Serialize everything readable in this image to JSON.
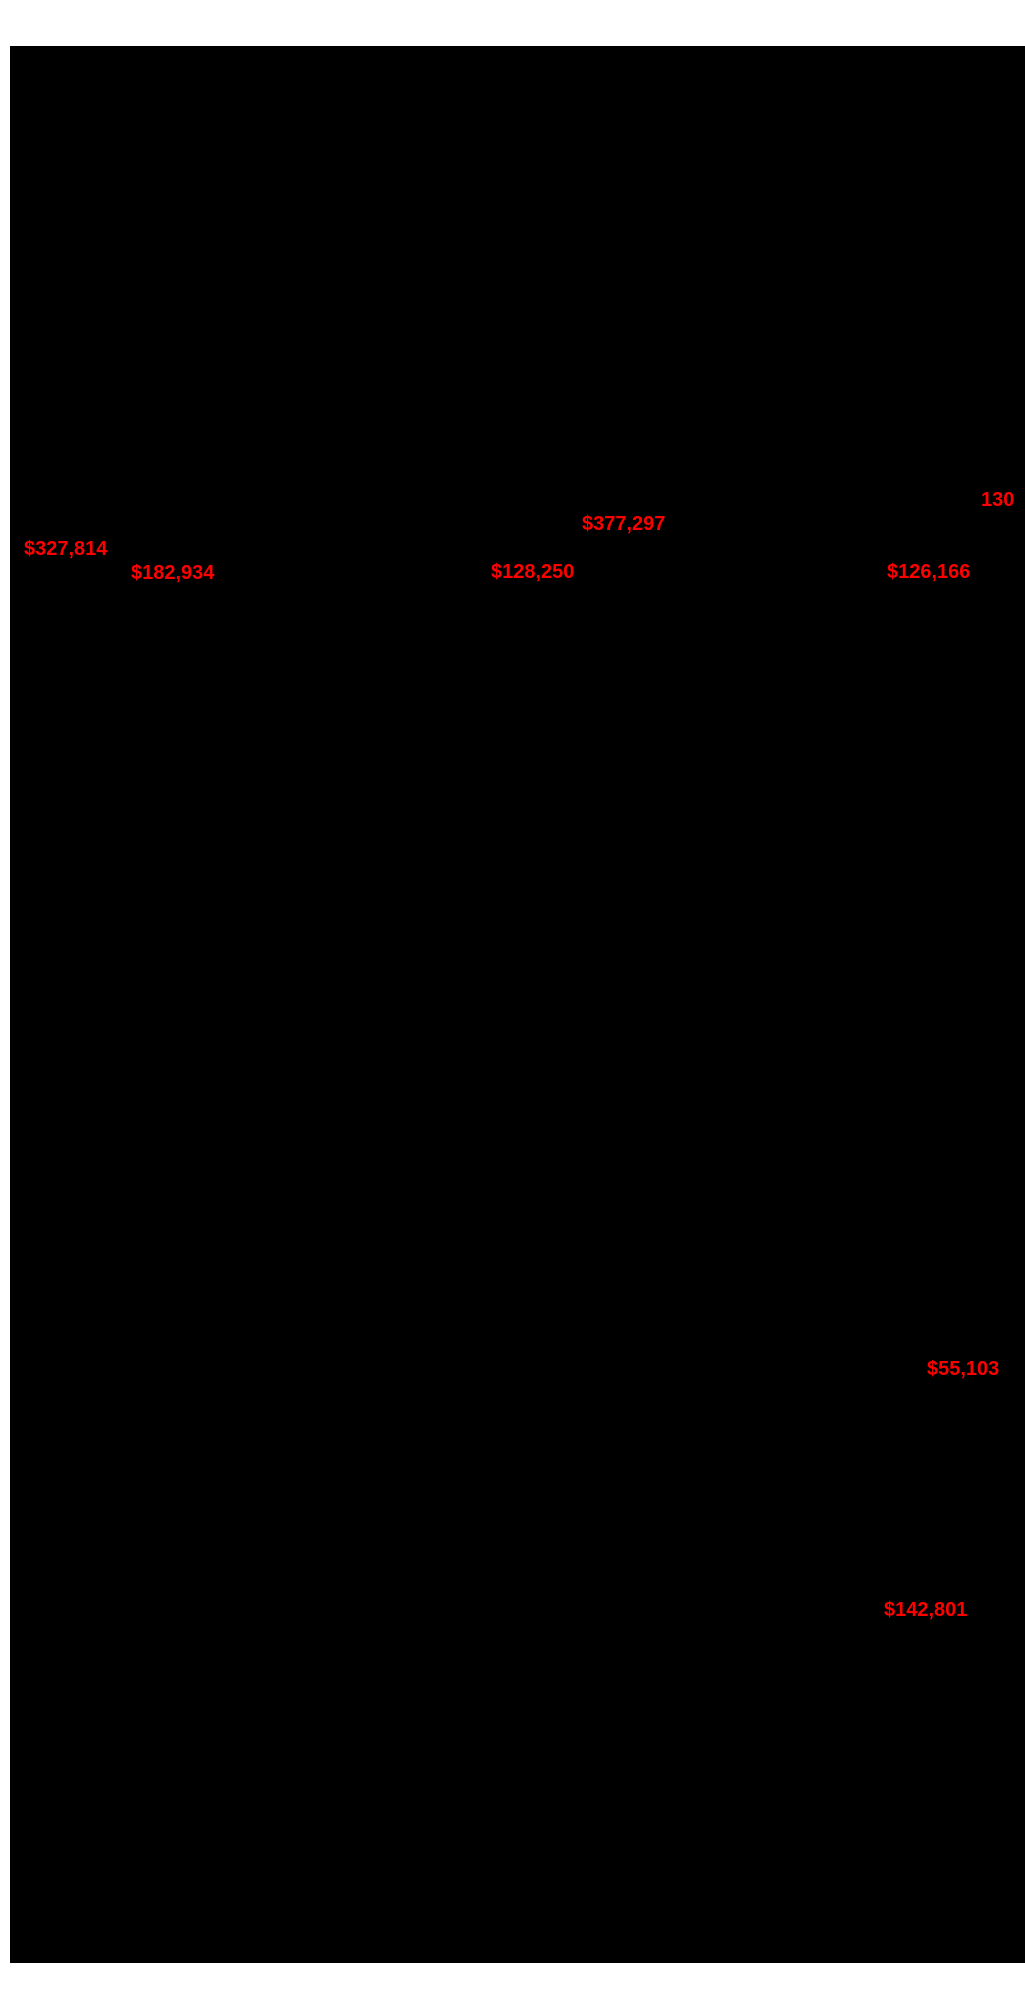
{
  "colors": {
    "page_background": "#ffffff",
    "panel_background": "#000000",
    "metric_text": "#ff0000"
  },
  "metrics": {
    "top_right_count": "130",
    "upper_center": "$377,297",
    "upper_left": "$327,814",
    "row2_left": "$182,934",
    "row2_center": "$128,250",
    "row2_right": "$126,166",
    "mid_right": "$55,103",
    "lower_right": "$142,801"
  }
}
